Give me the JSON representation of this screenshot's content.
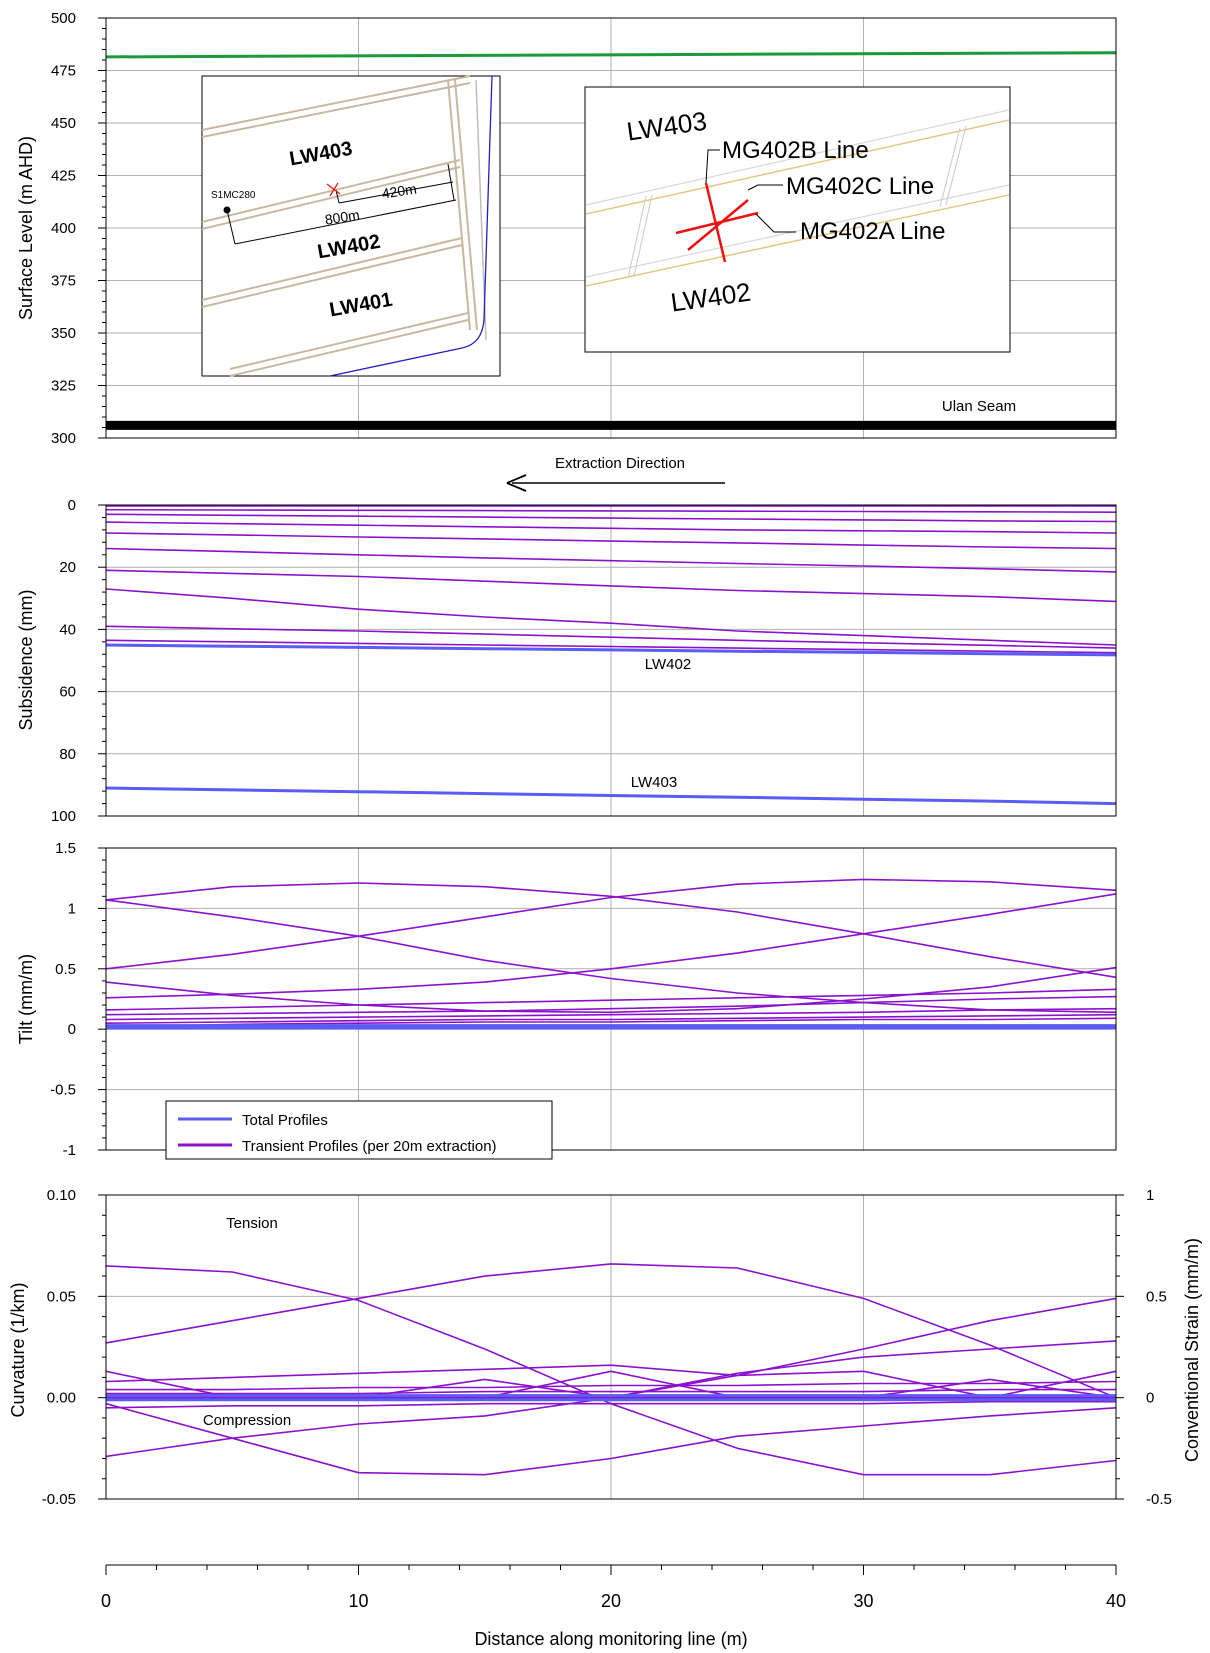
{
  "x_axis": {
    "label": "Distance along monitoring line  (m)",
    "range": [
      0,
      40
    ],
    "ticks": [
      0,
      10,
      20,
      30,
      40
    ],
    "tick_labels": [
      "0",
      "10",
      "20",
      "30",
      "40"
    ]
  },
  "chart_data": [
    {
      "id": "surface",
      "type": "line",
      "ylabel": "Surface Level (m AHD)",
      "ylim": [
        300,
        500
      ],
      "yticks": [
        300,
        325,
        350,
        375,
        400,
        425,
        450,
        475,
        500
      ],
      "ytick_labels": [
        "300",
        "325",
        "350",
        "375",
        "400",
        "425",
        "450",
        "475",
        "500"
      ],
      "grid": true,
      "series": [
        {
          "key": "surface",
          "color": "#1a9a3a",
          "x": [
            0,
            40
          ],
          "values": [
            481.5,
            483.5
          ]
        },
        {
          "key": "seam",
          "name": "Ulan Seam",
          "color": "#000000",
          "x": [
            0,
            40
          ],
          "values": [
            306,
            306
          ]
        }
      ],
      "annotations": {
        "seam_label": "Ulan Seam"
      }
    },
    {
      "id": "subsidence",
      "type": "line",
      "ylabel": "Subsidence (mm)",
      "ylim": [
        0,
        100
      ],
      "y_inverted": true,
      "yticks": [
        0,
        20,
        40,
        60,
        80,
        100
      ],
      "ytick_labels": [
        "0",
        "20",
        "40",
        "60",
        "80",
        "100"
      ],
      "grid": true,
      "x": [
        0,
        5,
        10,
        15,
        20,
        25,
        30,
        35,
        40
      ],
      "total": [
        {
          "name": "LW402",
          "values": [
            45,
            45.4,
            45.8,
            46.2,
            46.6,
            47,
            47.4,
            47.8,
            48.2
          ]
        },
        {
          "name": "LW403",
          "values": [
            91,
            91.6,
            92.2,
            92.8,
            93.4,
            94,
            94.6,
            95.2,
            96
          ]
        }
      ],
      "transient": [
        [
          0.3,
          0.3,
          0.3,
          0.3,
          0.3,
          0.3,
          0.3,
          0.3,
          0.3
        ],
        [
          1.5,
          1.6,
          1.7,
          1.8,
          1.9,
          2,
          2.1,
          2.2,
          2.3
        ],
        [
          3,
          3.3,
          3.6,
          3.9,
          4.2,
          4.5,
          4.8,
          5.1,
          5.3
        ],
        [
          5.5,
          6,
          6.5,
          7,
          7.5,
          8,
          8.3,
          8.6,
          9
        ],
        [
          9,
          9.6,
          10.3,
          10.9,
          11.6,
          12.2,
          12.9,
          13.5,
          14
        ],
        [
          14,
          15,
          16,
          17,
          17.9,
          18.8,
          19.6,
          20.5,
          21.5
        ],
        [
          21,
          22,
          23,
          24.5,
          26,
          27.5,
          28.5,
          29.5,
          31
        ],
        [
          27,
          30,
          33.5,
          36,
          38,
          40.5,
          42,
          43.5,
          45
        ],
        [
          39,
          39.8,
          40.5,
          41.5,
          42.5,
          43.5,
          44.3,
          45.1,
          46
        ],
        [
          43.5,
          44,
          44.5,
          45,
          45.5,
          46,
          46.5,
          47,
          47.5
        ]
      ]
    },
    {
      "id": "tilt",
      "type": "line",
      "ylabel": "Tilt (mm/m)",
      "ylim": [
        -1,
        1.5
      ],
      "yticks": [
        -1,
        -0.5,
        0,
        0.5,
        1,
        1.5
      ],
      "ytick_labels": [
        "-1",
        "-0.5",
        "0",
        "0.5",
        "1",
        "1.5"
      ],
      "grid": true,
      "x": [
        0,
        5,
        10,
        15,
        20,
        25,
        30,
        35,
        40
      ],
      "total": [
        [
          0.01,
          0.01,
          0.01,
          0.01,
          0.01,
          0.01,
          0.01,
          0.01,
          0.01
        ],
        [
          0.03,
          0.03,
          0.03,
          0.03,
          0.03,
          0.03,
          0.03,
          0.03,
          0.03
        ]
      ],
      "transient": [
        [
          1.07,
          1.18,
          1.21,
          1.18,
          1.1,
          0.97,
          0.79,
          0.6,
          0.43
        ],
        [
          0.5,
          0.62,
          0.77,
          0.93,
          1.09,
          1.2,
          1.24,
          1.22,
          1.15
        ],
        [
          1.07,
          0.93,
          0.77,
          0.57,
          0.42,
          0.3,
          0.22,
          0.16,
          0.14
        ],
        [
          0.26,
          0.29,
          0.33,
          0.39,
          0.5,
          0.63,
          0.79,
          0.95,
          1.12
        ],
        [
          0.39,
          0.28,
          0.2,
          0.15,
          0.14,
          0.17,
          0.25,
          0.35,
          0.51
        ],
        [
          0.16,
          0.18,
          0.2,
          0.22,
          0.24,
          0.26,
          0.28,
          0.3,
          0.33
        ],
        [
          0.12,
          0.13,
          0.14,
          0.15,
          0.17,
          0.19,
          0.22,
          0.25,
          0.27
        ],
        [
          0.08,
          0.09,
          0.1,
          0.11,
          0.12,
          0.13,
          0.14,
          0.16,
          0.17
        ],
        [
          0.05,
          0.06,
          0.07,
          0.08,
          0.08,
          0.09,
          0.1,
          0.11,
          0.12
        ],
        [
          0.02,
          0.04,
          0.05,
          0.06,
          0.06,
          0.07,
          0.08,
          0.08,
          0.09
        ]
      ],
      "legend": {
        "placement": "bottom-left",
        "entries": [
          {
            "name": "Total Profiles",
            "color": "#5b5bf5"
          },
          {
            "name": "Transient Profiles (per 20m extraction)",
            "color": "#8a12cc"
          }
        ]
      }
    },
    {
      "id": "curvature",
      "type": "line",
      "ylabel": "Curvature (1/km)",
      "ylabel_right": "Conventional Strain (mm/m)",
      "ylim": [
        -0.05,
        0.1
      ],
      "ylim_right": [
        -0.5,
        1
      ],
      "yticks": [
        -0.05,
        0,
        0.05,
        0.1
      ],
      "ytick_labels": [
        "-0.05",
        "0.00",
        "0.05",
        "0.10"
      ],
      "yticks_right": [
        -0.5,
        0,
        0.5,
        1
      ],
      "ytick_labels_right": [
        "-0.5",
        "0",
        "0.5",
        "1"
      ],
      "grid": true,
      "x": [
        0,
        5,
        10,
        15,
        20,
        25,
        30,
        35,
        40
      ],
      "total": [
        [
          0.001,
          0.001,
          0.001,
          0.001,
          0.001,
          0.001,
          0.001,
          0.001,
          0.001
        ],
        [
          -0.001,
          -0.001,
          -0.001,
          -0.001,
          -0.001,
          -0.001,
          -0.001,
          -0.001,
          -0.001
        ]
      ],
      "transient": [
        [
          0.065,
          0.062,
          0.048,
          0.024,
          -0.003,
          -0.025,
          -0.038,
          -0.038,
          -0.031
        ],
        [
          0.027,
          0.038,
          0.049,
          0.06,
          0.066,
          0.064,
          0.049,
          0.026,
          0.0
        ],
        [
          -0.029,
          -0.02,
          -0.013,
          -0.009,
          0.0,
          0.0,
          0.0,
          0.0,
          0.0
        ],
        [
          0.0,
          0.0,
          0.0,
          0.0,
          0.0,
          0.011,
          0.024,
          0.038,
          0.049
        ],
        [
          -0.003,
          -0.02,
          -0.037,
          -0.038,
          -0.03,
          -0.019,
          -0.014,
          -0.009,
          -0.005
        ],
        [
          0.0,
          0.0,
          0.0,
          0.0,
          0.0,
          0.012,
          0.02,
          0.024,
          0.028
        ],
        [
          0.013,
          0.0,
          0.0,
          0.009,
          0.0,
          0.0,
          0.0,
          0.009,
          0.0
        ],
        [
          0.0,
          0.0,
          0.0,
          0.0,
          0.013,
          0.0,
          0.0,
          0.0,
          0.013
        ],
        [
          0.008,
          0.01,
          0.012,
          0.014,
          0.016,
          0.011,
          0.013,
          0.0,
          0.0
        ],
        [
          0.004,
          0.004,
          0.005,
          0.005,
          0.006,
          0.006,
          0.007,
          0.007,
          0.008
        ],
        [
          0.002,
          0.002,
          0.002,
          0.003,
          0.003,
          0.003,
          0.003,
          0.004,
          0.004
        ],
        [
          -0.005,
          -0.004,
          -0.004,
          -0.003,
          -0.003,
          -0.003,
          -0.003,
          -0.002,
          -0.002
        ]
      ],
      "annotations": {
        "tension": "Tension",
        "compression": "Compression"
      }
    }
  ],
  "extraction": {
    "label": "Extraction Direction"
  },
  "inset_plan": {
    "panels": [
      "LW403",
      "LW402",
      "LW401"
    ],
    "point_label": "S1MC280",
    "dim_420": "420m",
    "dim_800": "800m"
  },
  "inset_detail": {
    "panel_top": "LW403",
    "panel_bottom": "LW402",
    "lines": [
      "MG402B Line",
      "MG402C Line",
      "MG402A Line"
    ]
  },
  "colors": {
    "total": "#5b5bf5",
    "transient": "#8a12cc",
    "surface": "#1a9a3a",
    "seam": "#000000",
    "grid": "#b0b0b0",
    "marker": "#ee1111",
    "roadway": "#e6c27a"
  }
}
